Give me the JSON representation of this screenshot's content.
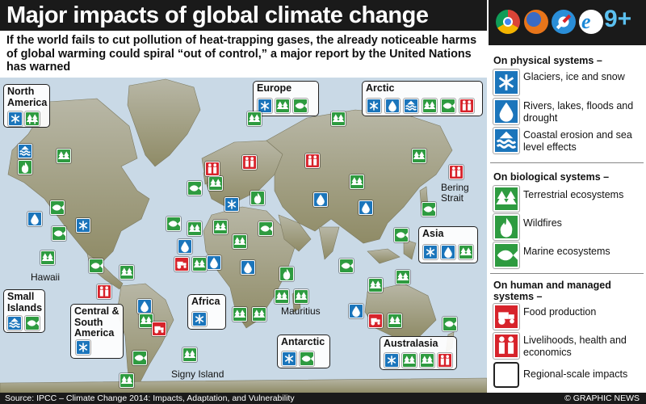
{
  "header": {
    "title": "Major impacts of global climate change",
    "subtitle": "If the world fails to cut pollution of heat-trapping gases, the already noticeable harms of global warming could spiral “out of control,” a major report by the United Nations has warned"
  },
  "browser_bar": {
    "icons": [
      "chrome-icon",
      "firefox-icon",
      "safari-icon",
      "internet-explorer-icon"
    ],
    "version_label": "9+"
  },
  "legend": {
    "physical_heading": "On physical systems –",
    "glaciers": "Glaciers, ice and snow",
    "rivers": "Rivers, lakes, floods and drought",
    "coastal": "Coastal erosion and sea level effects",
    "biological_heading": "On biological systems –",
    "terrestrial": "Terrestrial ecosystems",
    "wildfires": "Wildfires",
    "marine": "Marine ecosystems",
    "human_heading": "On human and managed systems –",
    "food": "Food production",
    "livelihoods": "Livelihoods, health and economics",
    "regional": "Regional-scale impacts"
  },
  "regions": {
    "north_america": "North America",
    "europe": "Europe",
    "arctic": "Arctic",
    "asia": "Asia",
    "small_islands": "Small Islands",
    "central_south_america": "Central & South America",
    "africa": "Africa",
    "antarctic": "Antarctic",
    "australasia": "Australasia"
  },
  "places": {
    "hawaii": "Hawaii",
    "bering_strait": "Bering Strait",
    "mauritius": "Mauritius",
    "signy_island": "Signy Island"
  },
  "footer": {
    "source": "Source: IPCC – Climate Change 2014: Impacts, Adaptation, and Vulnerability",
    "credit": "© GRAPHIC NEWS"
  },
  "colors": {
    "physical": "#1b75bb",
    "biological": "#2e9b40",
    "human": "#d7232b",
    "ocean": "#c9d9e6",
    "land": "#9a9a7a",
    "header": "#1a1a1a"
  }
}
